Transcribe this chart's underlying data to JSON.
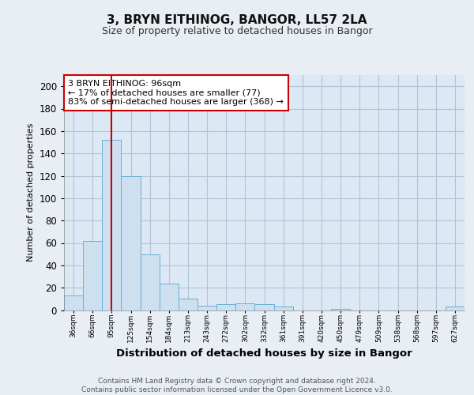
{
  "title1": "3, BRYN EITHINOG, BANGOR, LL57 2LA",
  "title2": "Size of property relative to detached houses in Bangor",
  "xlabel": "Distribution of detached houses by size in Bangor",
  "ylabel": "Number of detached properties",
  "footer": "Contains HM Land Registry data © Crown copyright and database right 2024.\nContains public sector information licensed under the Open Government Licence v3.0.",
  "bins": [
    "36sqm",
    "66sqm",
    "95sqm",
    "125sqm",
    "154sqm",
    "184sqm",
    "213sqm",
    "243sqm",
    "272sqm",
    "302sqm",
    "332sqm",
    "361sqm",
    "391sqm",
    "420sqm",
    "450sqm",
    "479sqm",
    "509sqm",
    "538sqm",
    "568sqm",
    "597sqm",
    "627sqm"
  ],
  "values": [
    13,
    62,
    152,
    120,
    50,
    24,
    10,
    4,
    5,
    6,
    5,
    3,
    0,
    0,
    1,
    0,
    0,
    0,
    0,
    0,
    3
  ],
  "bar_color": "#cde0f0",
  "bar_edge_color": "#6aaed6",
  "marker_line_color": "#cc0000",
  "marker_bin_index": 2,
  "annotation_text": "3 BRYN EITHINOG: 96sqm\n← 17% of detached houses are smaller (77)\n83% of semi-detached houses are larger (368) →",
  "annotation_box_color": "#ffffff",
  "annotation_box_edge": "#cc0000",
  "ylim": [
    0,
    210
  ],
  "yticks": [
    0,
    20,
    40,
    60,
    80,
    100,
    120,
    140,
    160,
    180,
    200
  ],
  "background_color": "#e8eef4",
  "plot_bg_color": "#dce8f4",
  "grid_color": "#b0c4d8"
}
